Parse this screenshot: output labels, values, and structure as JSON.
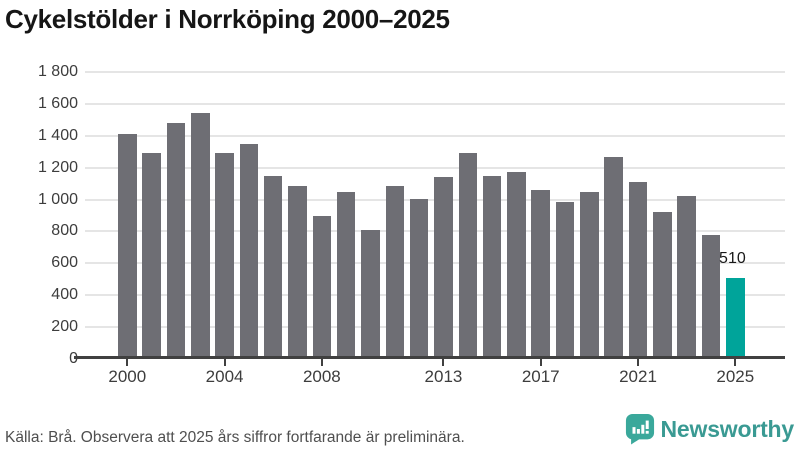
{
  "title": "Cykelstölder i Norrköping 2000–2025",
  "footer": {
    "source": "Källa: Brå. Observera att 2025 års siffror fortfarande är preliminära."
  },
  "branding": {
    "name": "Newsworthy",
    "icon": "newsworthy-speech-bubble-bar-chart-icon",
    "icon_color": "#3aa89b",
    "text_color": "#3a9a93"
  },
  "colors": {
    "bar": "#6e6e74",
    "highlight": "#00a49a",
    "axis": "#404040",
    "gridline": "#e5e5e5",
    "title_text": "#161616",
    "tick_label": "#3d3d3d",
    "footer_text": "#4f4f4f"
  },
  "chart_data": {
    "type": "bar",
    "title": "Cykelstölder i Norrköping 2000–2025",
    "x": [
      2000,
      2001,
      2002,
      2003,
      2004,
      2005,
      2006,
      2007,
      2008,
      2009,
      2010,
      2011,
      2012,
      2013,
      2014,
      2015,
      2016,
      2017,
      2018,
      2019,
      2020,
      2021,
      2022,
      2023,
      2024,
      2025
    ],
    "values": [
      1410,
      1290,
      1480,
      1545,
      1290,
      1350,
      1150,
      1085,
      900,
      1050,
      810,
      1085,
      1005,
      1140,
      1290,
      1145,
      1175,
      1060,
      985,
      1045,
      1270,
      1110,
      920,
      1020,
      775,
      510
    ],
    "highlight_year": 2025,
    "data_labels": [
      {
        "year": 2025,
        "text": "510"
      }
    ],
    "xlabel": "",
    "ylabel": "",
    "ylim": [
      0,
      1800
    ],
    "ytick_step": 200,
    "ytick_labels": [
      "0",
      "200",
      "400",
      "600",
      "800",
      "1 000",
      "1 200",
      "1 400",
      "1 600",
      "1 800"
    ],
    "xtick_years": [
      2000,
      2004,
      2008,
      2013,
      2017,
      2021,
      2025
    ],
    "grid": true,
    "legend": false
  }
}
